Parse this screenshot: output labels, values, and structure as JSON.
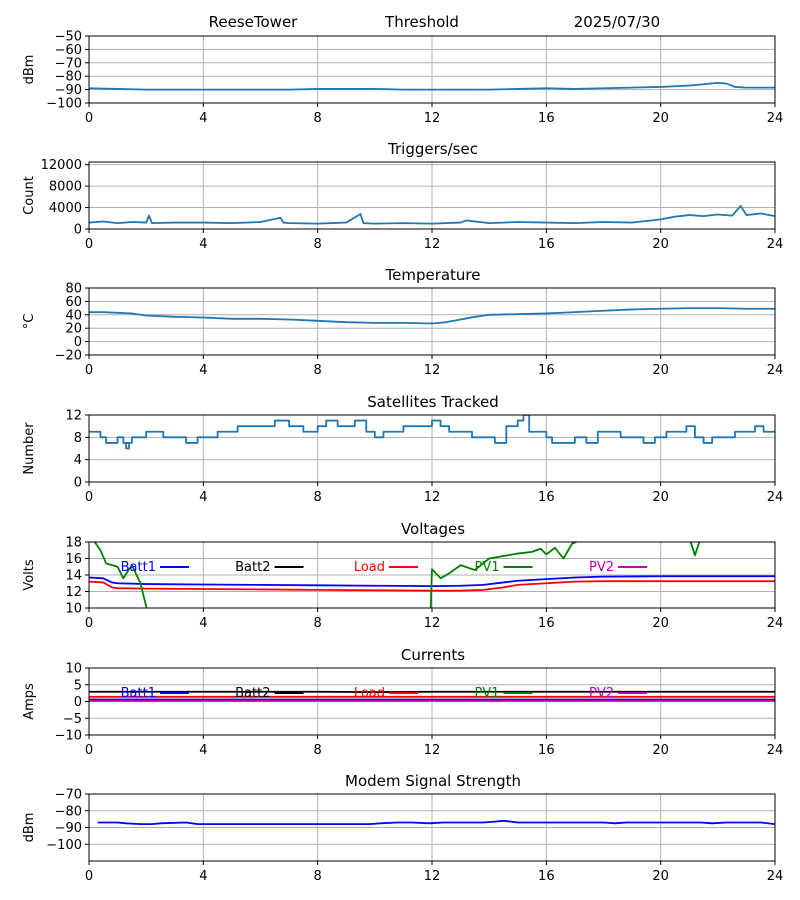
{
  "header": {
    "station": "ReeseTower",
    "mode": "Threshold",
    "date": "2025/07/30"
  },
  "chart_data": [
    {
      "type": "line",
      "title": "",
      "ylabel": "dBm",
      "xlim": [
        0,
        24
      ],
      "ylim": [
        -100,
        -50
      ],
      "xticks": [
        "0",
        "4",
        "8",
        "12",
        "16",
        "20",
        "24"
      ],
      "yticks": [
        "−50",
        "−60",
        "−70",
        "−80",
        "−90",
        "−100"
      ],
      "ytick_values": [
        -50,
        -60,
        -70,
        -80,
        -90,
        -100
      ],
      "grid": true,
      "series": [
        {
          "color": "#1f77b4",
          "x": [
            0,
            1,
            2,
            3,
            4,
            5,
            6,
            7,
            8,
            9,
            10,
            11,
            12,
            13,
            14,
            15,
            16,
            17,
            18,
            19,
            20,
            20.5,
            21,
            21.5,
            22,
            22.3,
            22.6,
            23,
            24
          ],
          "y": [
            -89,
            -89.5,
            -90,
            -90,
            -90,
            -90,
            -90,
            -90,
            -89.5,
            -89.5,
            -89.5,
            -90,
            -90,
            -90,
            -90,
            -89.5,
            -89,
            -89.5,
            -89,
            -88.5,
            -88,
            -87.5,
            -87,
            -86,
            -85,
            -85.5,
            -88,
            -88.5,
            -88.5
          ]
        }
      ]
    },
    {
      "type": "line",
      "title": "Triggers/sec",
      "ylabel": "Count",
      "xlim": [
        0,
        24
      ],
      "ylim": [
        0,
        12500
      ],
      "xticks": [
        "0",
        "4",
        "8",
        "12",
        "16",
        "20",
        "24"
      ],
      "yticks": [
        "0",
        "4000",
        "8000",
        "12000"
      ],
      "ytick_values": [
        0,
        4000,
        8000,
        12000
      ],
      "grid": true,
      "series": [
        {
          "color": "#1f77b4",
          "x": [
            0,
            0.5,
            1,
            1.5,
            2,
            2.1,
            2.2,
            3,
            4,
            5,
            6,
            6.7,
            6.8,
            7,
            8,
            9,
            9.5,
            9.6,
            10,
            11,
            12,
            13,
            13.2,
            14,
            15,
            16,
            17,
            18,
            19,
            19.5,
            20,
            20.5,
            21,
            21.5,
            22,
            22.5,
            22.8,
            23,
            23.5,
            24
          ],
          "y": [
            1200,
            1400,
            1100,
            1300,
            1200,
            2500,
            1100,
            1200,
            1200,
            1100,
            1300,
            2100,
            1200,
            1100,
            1000,
            1200,
            2800,
            1100,
            1000,
            1100,
            1000,
            1200,
            1600,
            1100,
            1300,
            1200,
            1100,
            1300,
            1200,
            1500,
            1800,
            2300,
            2600,
            2400,
            2700,
            2500,
            4300,
            2600,
            2900,
            2400
          ]
        }
      ]
    },
    {
      "type": "line",
      "title": "Temperature",
      "ylabel": "°C",
      "xlim": [
        0,
        24
      ],
      "ylim": [
        -20,
        80
      ],
      "xticks": [
        "0",
        "4",
        "8",
        "12",
        "16",
        "20",
        "24"
      ],
      "yticks": [
        "−20",
        "0",
        "20",
        "40",
        "60",
        "80"
      ],
      "ytick_values": [
        -20,
        0,
        20,
        40,
        60,
        80
      ],
      "grid": true,
      "series": [
        {
          "color": "#1f77b4",
          "x": [
            0,
            0.5,
            1,
            1.5,
            2,
            3,
            4,
            5,
            6,
            7,
            8,
            9,
            10,
            11,
            12,
            12.5,
            13,
            13.5,
            14,
            15,
            16,
            17,
            18,
            19,
            20,
            21,
            22,
            23,
            24
          ],
          "y": [
            44,
            44,
            43,
            42,
            39,
            37,
            36,
            34,
            34,
            33,
            31,
            29,
            28,
            28,
            27,
            29,
            33,
            37,
            40,
            41,
            42,
            44,
            46,
            48,
            49,
            50,
            50,
            49,
            49
          ]
        }
      ]
    },
    {
      "type": "line",
      "title": "Satellites Tracked",
      "ylabel": "Number",
      "xlim": [
        0,
        24
      ],
      "ylim": [
        0,
        12
      ],
      "xticks": [
        "0",
        "4",
        "8",
        "12",
        "16",
        "20",
        "24"
      ],
      "yticks": [
        "0",
        "4",
        "8",
        "12"
      ],
      "ytick_values": [
        0,
        4,
        8,
        12
      ],
      "grid": true,
      "series": [
        {
          "color": "#1f77b4",
          "step": true,
          "x": [
            0,
            0.4,
            0.6,
            1.0,
            1.2,
            1.4,
            1.3,
            1.5,
            1.7,
            2.0,
            2.2,
            2.6,
            3.0,
            3.4,
            3.8,
            4.1,
            4.5,
            4.9,
            5.2,
            5.6,
            6.0,
            6.5,
            7.0,
            7.5,
            8.0,
            8.3,
            8.7,
            9.0,
            9.3,
            9.7,
            10.0,
            10.3,
            10.7,
            11.0,
            11.5,
            12.0,
            12.3,
            12.6,
            13.0,
            13.4,
            13.8,
            14.2,
            14.6,
            15.0,
            15.2,
            15.4,
            15.8,
            16.0,
            16.2,
            16.6,
            17.0,
            17.4,
            17.8,
            18.2,
            18.6,
            19.0,
            19.4,
            19.8,
            20.2,
            20.6,
            20.9,
            21.2,
            21.5,
            21.8,
            22.2,
            22.6,
            23.0,
            23.3,
            23.6,
            24
          ],
          "y": [
            9,
            8,
            7,
            8,
            7,
            6,
            7,
            8,
            8,
            9,
            9,
            8,
            8,
            7,
            8,
            8,
            9,
            9,
            10,
            10,
            10,
            11,
            10,
            9,
            10,
            11,
            10,
            10,
            11,
            9,
            8,
            9,
            9,
            10,
            10,
            11,
            10,
            9,
            9,
            8,
            8,
            7,
            10,
            11,
            12,
            9,
            9,
            8,
            7,
            7,
            8,
            7,
            9,
            9,
            8,
            8,
            7,
            8,
            9,
            9,
            10,
            8,
            7,
            8,
            8,
            9,
            9,
            10,
            9,
            9
          ]
        }
      ]
    },
    {
      "type": "line",
      "title": "Voltages",
      "ylabel": "Volts",
      "xlim": [
        0,
        24
      ],
      "ylim": [
        10,
        18
      ],
      "xticks": [
        "0",
        "4",
        "8",
        "12",
        "16",
        "20",
        "24"
      ],
      "yticks": [
        "10",
        "12",
        "14",
        "16",
        "18"
      ],
      "ytick_values": [
        10,
        12,
        14,
        16,
        18
      ],
      "grid": true,
      "legend": "top",
      "series": [
        {
          "name": "Batt1",
          "color": "#0000ff",
          "x": [
            0,
            0.5,
            0.8,
            1,
            2,
            4,
            6,
            8,
            10,
            12,
            13,
            13.8,
            14.5,
            15,
            16,
            17,
            18,
            20,
            22,
            24
          ],
          "y": [
            13.7,
            13.6,
            13.1,
            13.0,
            12.9,
            12.85,
            12.8,
            12.75,
            12.7,
            12.65,
            12.7,
            12.8,
            13.1,
            13.3,
            13.5,
            13.7,
            13.8,
            13.85,
            13.85,
            13.85
          ]
        },
        {
          "name": "Batt2",
          "color": "#000000",
          "x": [],
          "y": []
        },
        {
          "name": "Load",
          "color": "#ff0000",
          "x": [
            0,
            0.5,
            0.8,
            1,
            2,
            4,
            6,
            8,
            10,
            12,
            13,
            13.8,
            14.5,
            15,
            16,
            17,
            18,
            20,
            22,
            24
          ],
          "y": [
            13.2,
            13.1,
            12.5,
            12.4,
            12.35,
            12.3,
            12.25,
            12.2,
            12.15,
            12.1,
            12.1,
            12.2,
            12.5,
            12.8,
            13.0,
            13.2,
            13.25,
            13.25,
            13.25,
            13.25
          ]
        },
        {
          "name": "PV1",
          "color": "#008000",
          "x": [
            0,
            0.2,
            0.4,
            0.6,
            0.8,
            1.0,
            1.2,
            1.5,
            1.8,
            2.0,
            2.05,
            11.95,
            12.0,
            12.3,
            12.6,
            13.0,
            13.5,
            14.0,
            14.5,
            15.0,
            15.5,
            15.8,
            16.0,
            16.3,
            16.6,
            16.9,
            17.2,
            17.5,
            21.0,
            21.2,
            21.4
          ],
          "y": [
            18.5,
            18,
            17,
            15.4,
            15.2,
            15.0,
            13.6,
            15.2,
            13,
            10.2,
            9.5,
            9.5,
            14.7,
            13.6,
            14.2,
            15.2,
            14.6,
            16.0,
            16.3,
            16.6,
            16.8,
            17.2,
            16.5,
            17.3,
            16.0,
            17.8,
            18.2,
            18.5,
            18.5,
            16.4,
            18.5
          ]
        },
        {
          "name": "PV2",
          "color": "#bf00bf",
          "x": [],
          "y": []
        }
      ]
    },
    {
      "type": "line",
      "title": "Currents",
      "ylabel": "Amps",
      "xlim": [
        0,
        24
      ],
      "ylim": [
        -10,
        10
      ],
      "xticks": [
        "0",
        "4",
        "8",
        "12",
        "16",
        "20",
        "24"
      ],
      "yticks": [
        "−10",
        "−5",
        "0",
        "5",
        "10"
      ],
      "ytick_values": [
        -10,
        -5,
        0,
        5,
        10
      ],
      "grid": true,
      "legend": "top",
      "series": [
        {
          "name": "Batt1",
          "color": "#0000ff",
          "x": [
            0,
            24
          ],
          "y": [
            0.6,
            0.6
          ]
        },
        {
          "name": "Batt2",
          "color": "#000000",
          "x": [
            0,
            2,
            4,
            6,
            8,
            10,
            12,
            14,
            16,
            18,
            20,
            22,
            24
          ],
          "y": [
            2.9,
            2.9,
            2.9,
            2.9,
            2.9,
            2.8,
            2.9,
            2.9,
            2.9,
            2.9,
            2.9,
            2.9,
            2.9
          ]
        },
        {
          "name": "Load",
          "color": "#ff0000",
          "x": [
            0,
            24
          ],
          "y": [
            1.4,
            1.4
          ]
        },
        {
          "name": "PV1",
          "color": "#008000",
          "x": [],
          "y": []
        },
        {
          "name": "PV2",
          "color": "#bf00bf",
          "x": [
            0,
            24
          ],
          "y": [
            0.2,
            0.2
          ]
        }
      ]
    },
    {
      "type": "line",
      "title": "Modem Signal Strength",
      "ylabel": "dBm",
      "xlim": [
        0,
        24
      ],
      "ylim": [
        -110,
        -70
      ],
      "xticks": [
        "0",
        "4",
        "8",
        "12",
        "16",
        "20",
        "24"
      ],
      "yticks": [
        "−70",
        "−80",
        "−90",
        "−100"
      ],
      "ytick_values": [
        -70,
        -80,
        -90,
        -100
      ],
      "grid": true,
      "series": [
        {
          "color": "#0000ff",
          "x": [
            0.3,
            1,
            1.3,
            1.8,
            2.2,
            2.5,
            3.4,
            3.8,
            4.5,
            6,
            8,
            9,
            9.8,
            10.2,
            10.8,
            11.3,
            11.9,
            12.4,
            13.8,
            14.2,
            14.5,
            15.0,
            16,
            17,
            18,
            18.4,
            18.8,
            20,
            21.4,
            21.8,
            22.3,
            23.5,
            24
          ],
          "y": [
            -87,
            -87,
            -87.5,
            -88,
            -88,
            -87.5,
            -87,
            -88,
            -88,
            -88,
            -88,
            -88,
            -88,
            -87.5,
            -87,
            -87,
            -87.5,
            -87,
            -87,
            -86.5,
            -86,
            -87,
            -87,
            -87,
            -87,
            -87.5,
            -87,
            -87,
            -87,
            -87.5,
            -87,
            -87,
            -88
          ]
        }
      ]
    }
  ]
}
